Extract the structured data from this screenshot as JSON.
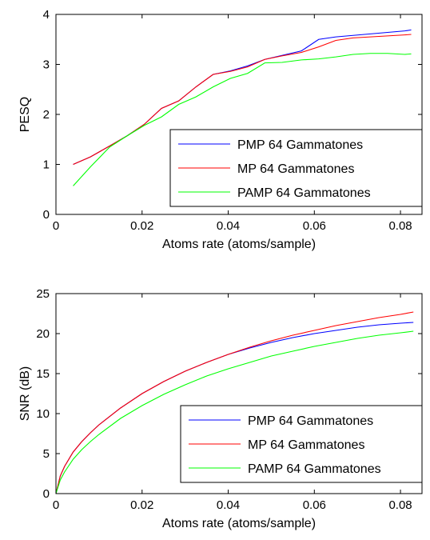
{
  "chart_data": [
    {
      "type": "line",
      "title": "",
      "xlabel": "Atoms rate (atoms/sample)",
      "ylabel": "PESQ",
      "xlim": [
        0,
        0.085
      ],
      "ylim": [
        0,
        4
      ],
      "xticks": [
        "0",
        "0.02",
        "0.04",
        "0.06",
        "0.08"
      ],
      "yticks": [
        "0",
        "1",
        "2",
        "3",
        "4"
      ],
      "legend_position": "bottom-right",
      "grid": false,
      "series": [
        {
          "name": "PMP 64 Gammatones",
          "color": "#0000ff",
          "x": [
            0.004,
            0.008,
            0.0125,
            0.0165,
            0.0205,
            0.0245,
            0.0285,
            0.0325,
            0.0365,
            0.0405,
            0.0445,
            0.0485,
            0.0525,
            0.057,
            0.061,
            0.065,
            0.069,
            0.073,
            0.077,
            0.081,
            0.0825
          ],
          "y": [
            1.0,
            1.15,
            1.37,
            1.57,
            1.8,
            2.12,
            2.27,
            2.55,
            2.8,
            2.87,
            2.97,
            3.1,
            3.18,
            3.27,
            3.5,
            3.55,
            3.58,
            3.61,
            3.64,
            3.67,
            3.69
          ]
        },
        {
          "name": "MP 64 Gammatones",
          "color": "#ff0000",
          "x": [
            0.004,
            0.008,
            0.0125,
            0.0165,
            0.0205,
            0.0245,
            0.0285,
            0.0325,
            0.0365,
            0.0405,
            0.0445,
            0.0485,
            0.0525,
            0.057,
            0.061,
            0.065,
            0.069,
            0.073,
            0.077,
            0.081,
            0.0825
          ],
          "y": [
            1.0,
            1.15,
            1.37,
            1.57,
            1.8,
            2.12,
            2.27,
            2.55,
            2.8,
            2.86,
            2.95,
            3.1,
            3.17,
            3.24,
            3.35,
            3.48,
            3.53,
            3.55,
            3.57,
            3.59,
            3.6
          ]
        },
        {
          "name": "PAMP 64 Gammatones",
          "color": "#00ff00",
          "x": [
            0.004,
            0.008,
            0.0125,
            0.0165,
            0.0205,
            0.0245,
            0.0285,
            0.0325,
            0.0365,
            0.0405,
            0.0445,
            0.0485,
            0.0525,
            0.057,
            0.061,
            0.065,
            0.069,
            0.073,
            0.077,
            0.081,
            0.0825
          ],
          "y": [
            0.57,
            0.95,
            1.35,
            1.57,
            1.78,
            1.95,
            2.2,
            2.35,
            2.55,
            2.72,
            2.82,
            3.03,
            3.04,
            3.09,
            3.11,
            3.15,
            3.2,
            3.22,
            3.22,
            3.2,
            3.21
          ]
        }
      ]
    },
    {
      "type": "line",
      "title": "",
      "xlabel": "Atoms rate (atoms/sample)",
      "ylabel": "SNR (dB)",
      "xlim": [
        0,
        0.085
      ],
      "ylim": [
        0,
        25
      ],
      "xticks": [
        "0",
        "0.02",
        "0.04",
        "0.06",
        "0.08"
      ],
      "yticks": [
        "0",
        "5",
        "10",
        "15",
        "20",
        "25"
      ],
      "legend_position": "bottom-right",
      "grid": false,
      "series": [
        {
          "name": "PMP 64 Gammatones",
          "color": "#0000ff",
          "x": [
            0,
            0.001,
            0.002,
            0.004,
            0.006,
            0.008,
            0.01,
            0.015,
            0.02,
            0.025,
            0.03,
            0.035,
            0.04,
            0.045,
            0.05,
            0.055,
            0.06,
            0.065,
            0.07,
            0.075,
            0.08,
            0.083
          ],
          "y": [
            0,
            2.2,
            3.4,
            5.2,
            6.5,
            7.6,
            8.6,
            10.7,
            12.5,
            14.0,
            15.3,
            16.4,
            17.4,
            18.2,
            18.9,
            19.5,
            20.0,
            20.4,
            20.8,
            21.1,
            21.3,
            21.4
          ]
        },
        {
          "name": "MP 64 Gammatones",
          "color": "#ff0000",
          "x": [
            0,
            0.001,
            0.002,
            0.004,
            0.006,
            0.008,
            0.01,
            0.015,
            0.02,
            0.025,
            0.03,
            0.035,
            0.04,
            0.045,
            0.05,
            0.055,
            0.06,
            0.065,
            0.07,
            0.075,
            0.08,
            0.083
          ],
          "y": [
            0,
            2.2,
            3.4,
            5.2,
            6.5,
            7.6,
            8.6,
            10.7,
            12.5,
            14.0,
            15.3,
            16.4,
            17.4,
            18.3,
            19.1,
            19.8,
            20.4,
            21.0,
            21.5,
            22.0,
            22.4,
            22.7
          ]
        },
        {
          "name": "PAMP 64 Gammatones",
          "color": "#00ff00",
          "x": [
            0,
            0.001,
            0.002,
            0.004,
            0.006,
            0.008,
            0.01,
            0.015,
            0.02,
            0.025,
            0.03,
            0.035,
            0.04,
            0.045,
            0.05,
            0.055,
            0.06,
            0.065,
            0.07,
            0.075,
            0.08,
            0.083
          ],
          "y": [
            0,
            1.7,
            2.7,
            4.3,
            5.5,
            6.5,
            7.4,
            9.4,
            11.0,
            12.4,
            13.6,
            14.7,
            15.6,
            16.4,
            17.2,
            17.8,
            18.4,
            18.9,
            19.4,
            19.8,
            20.1,
            20.3
          ]
        }
      ]
    }
  ]
}
